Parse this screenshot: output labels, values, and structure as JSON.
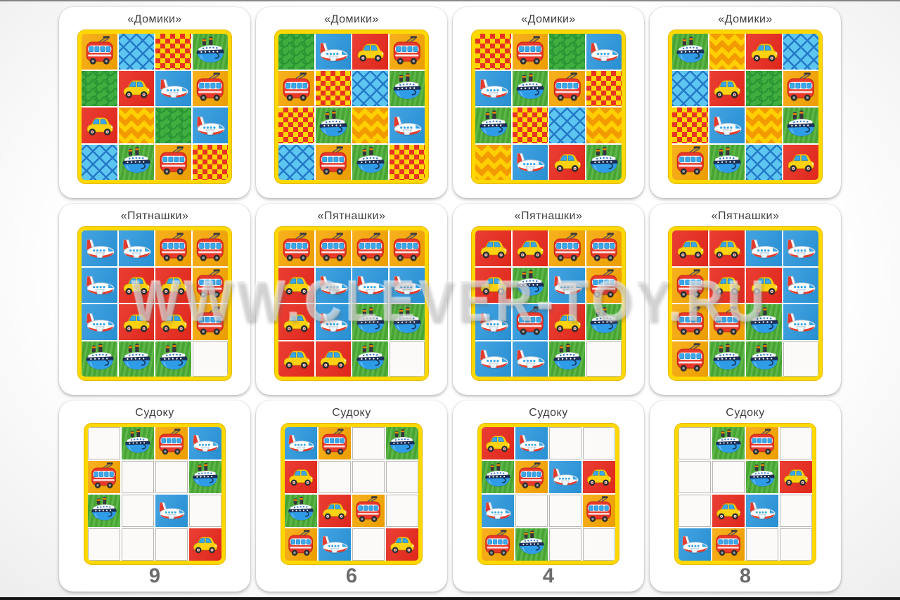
{
  "watermark": {
    "text": "WWW.CLEVER-TOY.RU"
  },
  "palette": {
    "card_bg": "#ffffff",
    "grid_border": "#ffd800",
    "red": "#e8291d",
    "blue": "#2a97dd",
    "green": "#4cae36",
    "orange": "#f7a600",
    "empty_cell": "#fbfaf8",
    "title_text": "#3f3f3f",
    "number_text": "#6b6b6b"
  },
  "icon_legend": [
    "plane-icon",
    "ship-icon",
    "trolleybus-icon",
    "car-icon"
  ],
  "pattern_legend": {
    "check": "red-yellow checkerboard",
    "diamonds": "blue diamond lattice",
    "scales": "green fish scales",
    "zigzag": "yellow-orange zigzag"
  },
  "cards": [
    {
      "title": "«Домики»",
      "number": null,
      "grid": [
        [
          "orange:trolleybus",
          "diamonds:",
          "check:",
          "green:ship"
        ],
        [
          "scales:",
          "red:car",
          "blue:plane",
          "orange:trolleybus"
        ],
        [
          "red:car",
          "zigzag:",
          "scales:",
          "blue:plane"
        ],
        [
          "diamonds:",
          "green:ship",
          "orange:trolleybus",
          "check:"
        ]
      ]
    },
    {
      "title": "«Домики»",
      "number": null,
      "grid": [
        [
          "scales:",
          "blue:plane",
          "red:car",
          "orange:trolleybus"
        ],
        [
          "orange:trolleybus",
          "check:",
          "diamonds:",
          "green:ship"
        ],
        [
          "check:",
          "green:ship",
          "zigzag:",
          "blue:plane"
        ],
        [
          "diamonds:",
          "orange:trolleybus",
          "green:ship",
          "check:"
        ]
      ]
    },
    {
      "title": "«Домики»",
      "number": null,
      "grid": [
        [
          "check:",
          "orange:trolleybus",
          "scales:",
          "blue:plane"
        ],
        [
          "blue:plane",
          "green:ship",
          "orange:trolleybus",
          "check:"
        ],
        [
          "green:ship",
          "check:",
          "diamonds:",
          "zigzag:"
        ],
        [
          "zigzag:",
          "blue:plane",
          "red:car",
          "green:ship"
        ]
      ]
    },
    {
      "title": "«Домики»",
      "number": null,
      "grid": [
        [
          "green:ship",
          "zigzag:",
          "red:car",
          "diamonds:"
        ],
        [
          "diamonds:",
          "red:car",
          "scales:",
          "orange:trolleybus"
        ],
        [
          "check:",
          "blue:plane",
          "zigzag:",
          "green:ship"
        ],
        [
          "orange:trolleybus",
          "green:ship",
          "diamonds:",
          "red:car"
        ]
      ]
    },
    {
      "title": "«Пятнашки»",
      "number": null,
      "grid": [
        [
          "blue:plane",
          "blue:plane",
          "orange:trolleybus",
          "orange:trolleybus"
        ],
        [
          "blue:plane",
          "red:car",
          "red:car",
          "orange:trolleybus"
        ],
        [
          "blue:plane",
          "red:car",
          "red:car",
          "orange:trolleybus"
        ],
        [
          "green:ship",
          "green:ship",
          "green:ship",
          "empty:"
        ]
      ]
    },
    {
      "title": "«Пятнашки»",
      "number": null,
      "grid": [
        [
          "orange:trolleybus",
          "orange:trolleybus",
          "orange:trolleybus",
          "orange:trolleybus"
        ],
        [
          "red:car",
          "blue:plane",
          "blue:plane",
          "blue:plane"
        ],
        [
          "red:car",
          "blue:plane",
          "green:ship",
          "green:ship"
        ],
        [
          "red:car",
          "red:car",
          "green:ship",
          "empty:"
        ]
      ]
    },
    {
      "title": "«Пятнашки»",
      "number": null,
      "grid": [
        [
          "red:car",
          "red:car",
          "orange:trolleybus",
          "orange:trolleybus"
        ],
        [
          "red:car",
          "green:ship",
          "blue:plane",
          "orange:trolleybus"
        ],
        [
          "blue:plane",
          "blue:trolleybus",
          "red:car",
          "green:ship"
        ],
        [
          "blue:plane",
          "blue:plane",
          "green:ship",
          "empty:"
        ]
      ]
    },
    {
      "title": "«Пятнашки»",
      "number": null,
      "grid": [
        [
          "red:car",
          "red:car",
          "blue:plane",
          "blue:plane"
        ],
        [
          "orange:trolleybus",
          "red:car",
          "red:car",
          "blue:plane"
        ],
        [
          "orange:trolleybus",
          "orange:trolleybus",
          "green:ship",
          "blue:plane"
        ],
        [
          "orange:trolleybus",
          "green:ship",
          "green:ship",
          "empty:"
        ]
      ]
    },
    {
      "title": "Судоку",
      "number": "9",
      "grid": [
        [
          "empty:",
          "green:ship",
          "orange:trolleybus",
          "blue:plane"
        ],
        [
          "orange:trolleybus",
          "empty:",
          "empty:",
          "green:ship"
        ],
        [
          "green:ship",
          "empty:",
          "blue:plane",
          "empty:"
        ],
        [
          "empty:",
          "empty:",
          "empty:",
          "red:car"
        ]
      ]
    },
    {
      "title": "Судоку",
      "number": "6",
      "grid": [
        [
          "blue:plane",
          "orange:trolleybus",
          "empty:",
          "green:ship"
        ],
        [
          "red:car",
          "empty:",
          "empty:",
          "empty:"
        ],
        [
          "green:ship",
          "red:car",
          "orange:trolleybus",
          "empty:"
        ],
        [
          "orange:trolleybus",
          "blue:plane",
          "empty:",
          "red:car"
        ]
      ]
    },
    {
      "title": "Судоку",
      "number": "4",
      "grid": [
        [
          "red:car",
          "blue:plane",
          "empty:",
          "empty:"
        ],
        [
          "green:ship",
          "orange:trolleybus",
          "blue:plane",
          "red:car"
        ],
        [
          "blue:plane",
          "empty:",
          "empty:",
          "orange:trolleybus"
        ],
        [
          "orange:trolleybus",
          "green:ship",
          "empty:",
          "empty:"
        ]
      ]
    },
    {
      "title": "Судоку",
      "number": "8",
      "grid": [
        [
          "empty:",
          "green:ship",
          "orange:trolleybus",
          "empty:"
        ],
        [
          "empty:",
          "empty:",
          "green:ship",
          "red:car"
        ],
        [
          "empty:",
          "red:car",
          "blue:plane",
          "empty:"
        ],
        [
          "blue:plane",
          "orange:trolleybus",
          "empty:",
          "empty:"
        ]
      ]
    }
  ]
}
